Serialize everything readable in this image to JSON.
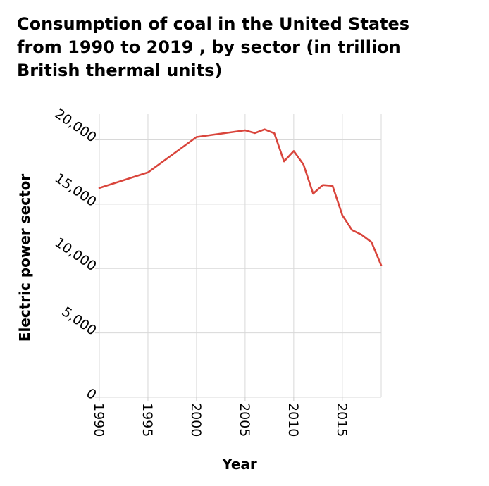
{
  "chart_data": {
    "type": "line",
    "title": "Consumption of coal in the United States\nfrom 1990 to 2019 , by sector (in trillion\nBritish thermal units)",
    "xlabel": "Year",
    "ylabel": "Electric power sector",
    "x_ticks": [
      "1990",
      "1995",
      "2000",
      "2005",
      "2010",
      "2015"
    ],
    "y_ticks": [
      "0",
      "5,000",
      "10,000",
      "15,000",
      "20,000"
    ],
    "xlim": [
      1990,
      2019
    ],
    "ylim": [
      0,
      22000
    ],
    "grid": true,
    "series": [
      {
        "color": "#d9453c",
        "x": [
          1990,
          1995,
          2000,
          2005,
          2006,
          2007,
          2008,
          2009,
          2010,
          2011,
          2012,
          2013,
          2014,
          2015,
          2016,
          2017,
          2018,
          2019
        ],
        "y": [
          16260,
          17470,
          20220,
          20740,
          20530,
          20810,
          20510,
          18330,
          19130,
          18080,
          15820,
          16490,
          16430,
          14150,
          12990,
          12620,
          12050,
          10250
        ]
      }
    ]
  }
}
